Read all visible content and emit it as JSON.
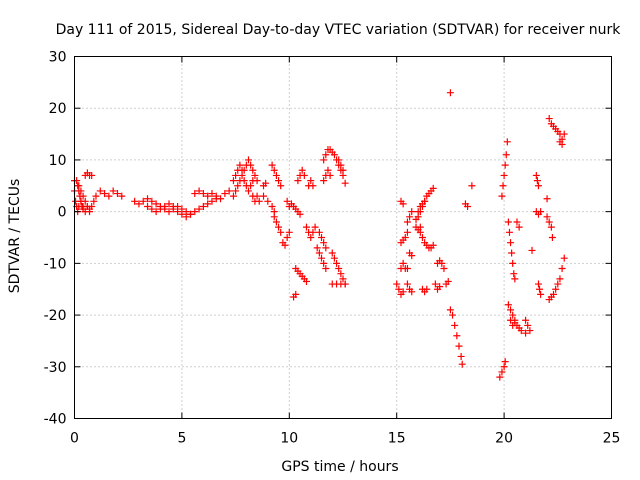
{
  "chart_data": {
    "type": "scatter",
    "title": "Day 111 of 2015, Sidereal Day-to-day VTEC variation (SDTVAR) for receiver nurk",
    "xlabel": "GPS time / hours",
    "ylabel": "SDTVAR / TECUs",
    "xlim": [
      0,
      25
    ],
    "ylim": [
      -40,
      30
    ],
    "xticks": [
      0,
      5,
      10,
      15,
      20,
      25
    ],
    "yticks": [
      -40,
      -30,
      -20,
      -10,
      0,
      10,
      20,
      30
    ],
    "grid": true,
    "marker": "plus",
    "marker_color": "#ff0000",
    "segments": [
      [
        [
          0.0,
          6
        ],
        [
          0.2,
          5
        ],
        [
          0.3,
          4
        ],
        [
          0.4,
          3
        ],
        [
          0.5,
          2
        ],
        [
          0.6,
          1
        ],
        [
          0.7,
          0.5
        ],
        [
          0.8,
          1
        ],
        [
          0.9,
          2
        ]
      ],
      [
        [
          0.0,
          4
        ],
        [
          0.05,
          2
        ],
        [
          0.1,
          1
        ],
        [
          0.15,
          0
        ],
        [
          0.2,
          1
        ],
        [
          0.3,
          2
        ],
        [
          0.4,
          1
        ],
        [
          0.5,
          0
        ],
        [
          0.6,
          1
        ],
        [
          0.7,
          0
        ]
      ],
      [
        [
          0.1,
          6
        ],
        [
          0.15,
          5
        ],
        [
          0.2,
          4
        ],
        [
          0.25,
          3
        ],
        [
          0.3,
          2
        ],
        [
          0.35,
          1
        ],
        [
          0.4,
          0.5
        ]
      ],
      [
        [
          0.5,
          7
        ],
        [
          0.6,
          7.5
        ],
        [
          0.7,
          7
        ],
        [
          0.8,
          7
        ]
      ],
      [
        [
          1.0,
          3
        ],
        [
          1.2,
          4
        ],
        [
          1.4,
          3.5
        ],
        [
          1.6,
          3
        ],
        [
          1.8,
          4
        ],
        [
          2.0,
          3.5
        ],
        [
          2.2,
          3
        ]
      ],
      [
        [
          2.8,
          2
        ],
        [
          3.0,
          1.5
        ],
        [
          3.2,
          2
        ],
        [
          3.4,
          2.5
        ],
        [
          3.6,
          2
        ],
        [
          3.8,
          1.5
        ],
        [
          4.0,
          1
        ],
        [
          4.2,
          0.5
        ],
        [
          4.4,
          0
        ],
        [
          4.6,
          0.5
        ],
        [
          4.8,
          1
        ],
        [
          5.0,
          0.5
        ],
        [
          5.2,
          0
        ],
        [
          5.4,
          -0.5
        ],
        [
          5.6,
          0
        ],
        [
          5.8,
          0.5
        ],
        [
          6.0,
          1
        ],
        [
          6.2,
          1.5
        ],
        [
          6.4,
          2
        ],
        [
          6.6,
          2.5
        ]
      ],
      [
        [
          3.4,
          1
        ],
        [
          3.6,
          0.5
        ],
        [
          3.8,
          0
        ],
        [
          4.0,
          0.5
        ],
        [
          4.2,
          1
        ],
        [
          4.4,
          1.5
        ],
        [
          4.6,
          1
        ],
        [
          4.8,
          0
        ],
        [
          5.0,
          -0.5
        ],
        [
          5.2,
          -1
        ],
        [
          5.4,
          -0.5
        ]
      ],
      [
        [
          5.6,
          3.5
        ],
        [
          5.8,
          4
        ],
        [
          6.0,
          3.5
        ],
        [
          6.2,
          3
        ],
        [
          6.4,
          3.5
        ],
        [
          6.6,
          3
        ],
        [
          6.8,
          2.5
        ]
      ],
      [
        [
          7.0,
          3.5
        ],
        [
          7.2,
          4
        ],
        [
          7.4,
          3
        ]
      ],
      [
        [
          7.4,
          6
        ],
        [
          7.5,
          7
        ],
        [
          7.6,
          8
        ],
        [
          7.7,
          9
        ],
        [
          7.8,
          8
        ],
        [
          7.9,
          6
        ],
        [
          8.0,
          5
        ],
        [
          8.1,
          4
        ],
        [
          8.2,
          5
        ],
        [
          8.3,
          6
        ],
        [
          8.4,
          7
        ],
        [
          8.5,
          6
        ]
      ],
      [
        [
          7.5,
          4
        ],
        [
          7.6,
          5
        ],
        [
          7.7,
          6
        ],
        [
          7.8,
          7
        ],
        [
          7.9,
          8
        ],
        [
          8.0,
          9
        ],
        [
          8.1,
          10
        ],
        [
          8.2,
          9
        ],
        [
          8.3,
          8
        ]
      ],
      [
        [
          8.3,
          3
        ],
        [
          8.4,
          2
        ],
        [
          8.5,
          3
        ],
        [
          8.6,
          2
        ]
      ],
      [
        [
          8.8,
          5
        ],
        [
          8.9,
          5.5
        ]
      ],
      [
        [
          9.2,
          9
        ],
        [
          9.3,
          8
        ],
        [
          9.4,
          7
        ],
        [
          9.5,
          6
        ],
        [
          9.6,
          5
        ]
      ],
      [
        [
          8.8,
          3
        ],
        [
          9.0,
          2
        ],
        [
          9.2,
          1
        ],
        [
          9.3,
          0
        ]
      ],
      [
        [
          9.3,
          -1
        ],
        [
          9.4,
          -2
        ],
        [
          9.5,
          -3
        ],
        [
          9.6,
          -4
        ],
        [
          9.7,
          -6
        ],
        [
          9.8,
          -6.5
        ],
        [
          9.9,
          -5
        ],
        [
          10.0,
          -4
        ]
      ],
      [
        [
          9.9,
          2
        ],
        [
          10.0,
          1
        ],
        [
          10.1,
          1.5
        ],
        [
          10.2,
          1
        ],
        [
          10.3,
          0.5
        ],
        [
          10.4,
          0
        ],
        [
          10.5,
          -0.5
        ]
      ],
      [
        [
          10.2,
          -16.5
        ],
        [
          10.3,
          -16
        ]
      ],
      [
        [
          10.3,
          -11
        ],
        [
          10.4,
          -11.5
        ],
        [
          10.5,
          -12
        ],
        [
          10.6,
          -12.5
        ],
        [
          10.7,
          -13
        ],
        [
          10.8,
          -13.5
        ]
      ],
      [
        [
          10.4,
          6
        ],
        [
          10.5,
          7
        ],
        [
          10.6,
          8
        ],
        [
          10.7,
          7
        ]
      ],
      [
        [
          10.8,
          -3
        ],
        [
          10.9,
          -4
        ],
        [
          11.0,
          -5
        ],
        [
          11.1,
          -4
        ],
        [
          11.2,
          -3
        ]
      ],
      [
        [
          10.9,
          5
        ],
        [
          11.0,
          6
        ],
        [
          11.1,
          5
        ]
      ],
      [
        [
          11.3,
          -7
        ],
        [
          11.4,
          -8
        ],
        [
          11.5,
          -9
        ],
        [
          11.6,
          -10
        ],
        [
          11.7,
          -11
        ]
      ],
      [
        [
          11.4,
          -4
        ],
        [
          11.5,
          -5
        ],
        [
          11.6,
          -6
        ],
        [
          11.7,
          -7
        ]
      ],
      [
        [
          11.6,
          6
        ],
        [
          11.7,
          7
        ],
        [
          11.8,
          8
        ],
        [
          11.9,
          7
        ]
      ],
      [
        [
          11.6,
          10
        ],
        [
          11.7,
          11
        ],
        [
          11.8,
          12
        ],
        [
          11.9,
          12
        ],
        [
          12.0,
          11.5
        ],
        [
          12.1,
          11
        ],
        [
          12.2,
          10
        ],
        [
          12.3,
          9
        ],
        [
          12.4,
          8
        ],
        [
          12.5,
          7
        ],
        [
          12.6,
          5.5
        ]
      ],
      [
        [
          12.3,
          10
        ],
        [
          12.4,
          9
        ],
        [
          12.5,
          8
        ]
      ],
      [
        [
          12.0,
          -8
        ],
        [
          12.1,
          -9
        ],
        [
          12.2,
          -10
        ],
        [
          12.3,
          -11
        ],
        [
          12.4,
          -12
        ],
        [
          12.5,
          -13
        ],
        [
          12.6,
          -14
        ]
      ],
      [
        [
          12.0,
          -14
        ],
        [
          12.2,
          -14
        ],
        [
          12.4,
          -14
        ],
        [
          12.6,
          -14
        ]
      ],
      [
        [
          15.0,
          -14
        ],
        [
          15.1,
          -15
        ],
        [
          15.2,
          -16
        ],
        [
          15.3,
          -15.5
        ]
      ],
      [
        [
          15.2,
          -11
        ],
        [
          15.3,
          -10
        ],
        [
          15.4,
          -11
        ],
        [
          15.5,
          -11
        ]
      ],
      [
        [
          15.2,
          -6
        ],
        [
          15.3,
          -5.5
        ],
        [
          15.4,
          -5
        ],
        [
          15.5,
          -4
        ]
      ],
      [
        [
          15.2,
          2
        ],
        [
          15.3,
          1.5
        ]
      ],
      [
        [
          15.5,
          -14
        ],
        [
          15.6,
          -15
        ],
        [
          15.7,
          -15.5
        ]
      ],
      [
        [
          15.6,
          -8
        ],
        [
          15.7,
          -8.5
        ]
      ],
      [
        [
          15.5,
          -2
        ],
        [
          15.6,
          -1
        ],
        [
          15.7,
          0
        ]
      ],
      [
        [
          15.9,
          -3
        ],
        [
          16.0,
          -3.5
        ],
        [
          16.1,
          -3
        ]
      ],
      [
        [
          16.0,
          -1
        ],
        [
          16.1,
          0
        ],
        [
          16.2,
          1
        ],
        [
          16.3,
          2
        ],
        [
          16.4,
          3
        ],
        [
          16.5,
          3.5
        ],
        [
          16.6,
          4
        ],
        [
          16.7,
          4.5
        ]
      ],
      [
        [
          15.9,
          -1.5
        ],
        [
          16.0,
          0
        ],
        [
          16.1,
          1
        ],
        [
          16.2,
          1.5
        ],
        [
          16.3,
          2
        ]
      ],
      [
        [
          16.2,
          -15
        ],
        [
          16.3,
          -15.5
        ],
        [
          16.4,
          -15
        ]
      ],
      [
        [
          16.1,
          -4
        ],
        [
          16.2,
          -5
        ],
        [
          16.3,
          -6
        ],
        [
          16.4,
          -6.5
        ],
        [
          16.5,
          -7
        ],
        [
          16.6,
          -7
        ],
        [
          16.7,
          -6.5
        ]
      ],
      [
        [
          16.8,
          -14
        ],
        [
          16.9,
          -15
        ],
        [
          17.0,
          -14.5
        ]
      ],
      [
        [
          16.9,
          -10
        ],
        [
          17.0,
          -9.5
        ],
        [
          17.1,
          -10
        ],
        [
          17.2,
          -11
        ]
      ],
      [
        [
          17.3,
          -14
        ],
        [
          17.4,
          -13.5
        ]
      ],
      [
        [
          17.5,
          23
        ]
      ],
      [
        [
          17.5,
          -19
        ],
        [
          17.6,
          -20
        ],
        [
          17.7,
          -22
        ],
        [
          17.8,
          -24
        ],
        [
          17.9,
          -26
        ],
        [
          18.0,
          -28
        ],
        [
          18.05,
          -29.5
        ]
      ],
      [
        [
          18.2,
          1.5
        ],
        [
          18.3,
          1
        ]
      ],
      [
        [
          18.5,
          5
        ]
      ],
      [
        [
          19.8,
          -32
        ],
        [
          19.9,
          -31
        ],
        [
          20.0,
          -30
        ],
        [
          20.05,
          -29
        ]
      ],
      [
        [
          19.9,
          3
        ],
        [
          19.95,
          5
        ],
        [
          20.0,
          7
        ],
        [
          20.05,
          9
        ],
        [
          20.1,
          11
        ],
        [
          20.15,
          13.5
        ]
      ],
      [
        [
          20.2,
          -2
        ],
        [
          20.25,
          -4
        ],
        [
          20.3,
          -6
        ],
        [
          20.35,
          -8
        ],
        [
          20.4,
          -10
        ],
        [
          20.45,
          -12
        ],
        [
          20.5,
          -13
        ]
      ],
      [
        [
          20.2,
          -18
        ],
        [
          20.3,
          -19
        ],
        [
          20.4,
          -20
        ],
        [
          20.5,
          -21
        ],
        [
          20.6,
          -22
        ],
        [
          20.7,
          -22.5
        ],
        [
          20.8,
          -23
        ],
        [
          21.0,
          -23.5
        ],
        [
          21.2,
          -23
        ]
      ],
      [
        [
          20.3,
          -21
        ],
        [
          20.4,
          -22
        ],
        [
          20.5,
          -21.5
        ]
      ],
      [
        [
          20.6,
          -2
        ],
        [
          20.7,
          -3
        ]
      ],
      [
        [
          21.0,
          -21
        ],
        [
          21.1,
          -22
        ]
      ],
      [
        [
          21.3,
          -7.5
        ]
      ],
      [
        [
          21.5,
          7
        ],
        [
          21.55,
          6
        ],
        [
          21.6,
          5
        ]
      ],
      [
        [
          21.6,
          -14
        ],
        [
          21.65,
          -15
        ],
        [
          21.7,
          -16
        ]
      ],
      [
        [
          21.5,
          0
        ],
        [
          21.6,
          -0.5
        ],
        [
          21.7,
          0
        ]
      ],
      [
        [
          22.0,
          -1
        ],
        [
          22.1,
          -2
        ],
        [
          22.2,
          -3
        ],
        [
          22.25,
          -5
        ]
      ],
      [
        [
          22.0,
          2.5
        ]
      ],
      [
        [
          22.1,
          -17
        ],
        [
          22.2,
          -16.5
        ],
        [
          22.3,
          -16
        ],
        [
          22.4,
          -15
        ],
        [
          22.5,
          -14
        ],
        [
          22.6,
          -13
        ],
        [
          22.7,
          -11
        ],
        [
          22.8,
          -9
        ]
      ],
      [
        [
          22.1,
          18
        ],
        [
          22.2,
          17
        ],
        [
          22.3,
          16.5
        ],
        [
          22.4,
          16
        ],
        [
          22.5,
          15.5
        ],
        [
          22.6,
          15
        ],
        [
          22.7,
          14
        ],
        [
          22.8,
          15
        ]
      ],
      [
        [
          22.6,
          13.5
        ],
        [
          22.7,
          13
        ]
      ]
    ]
  }
}
